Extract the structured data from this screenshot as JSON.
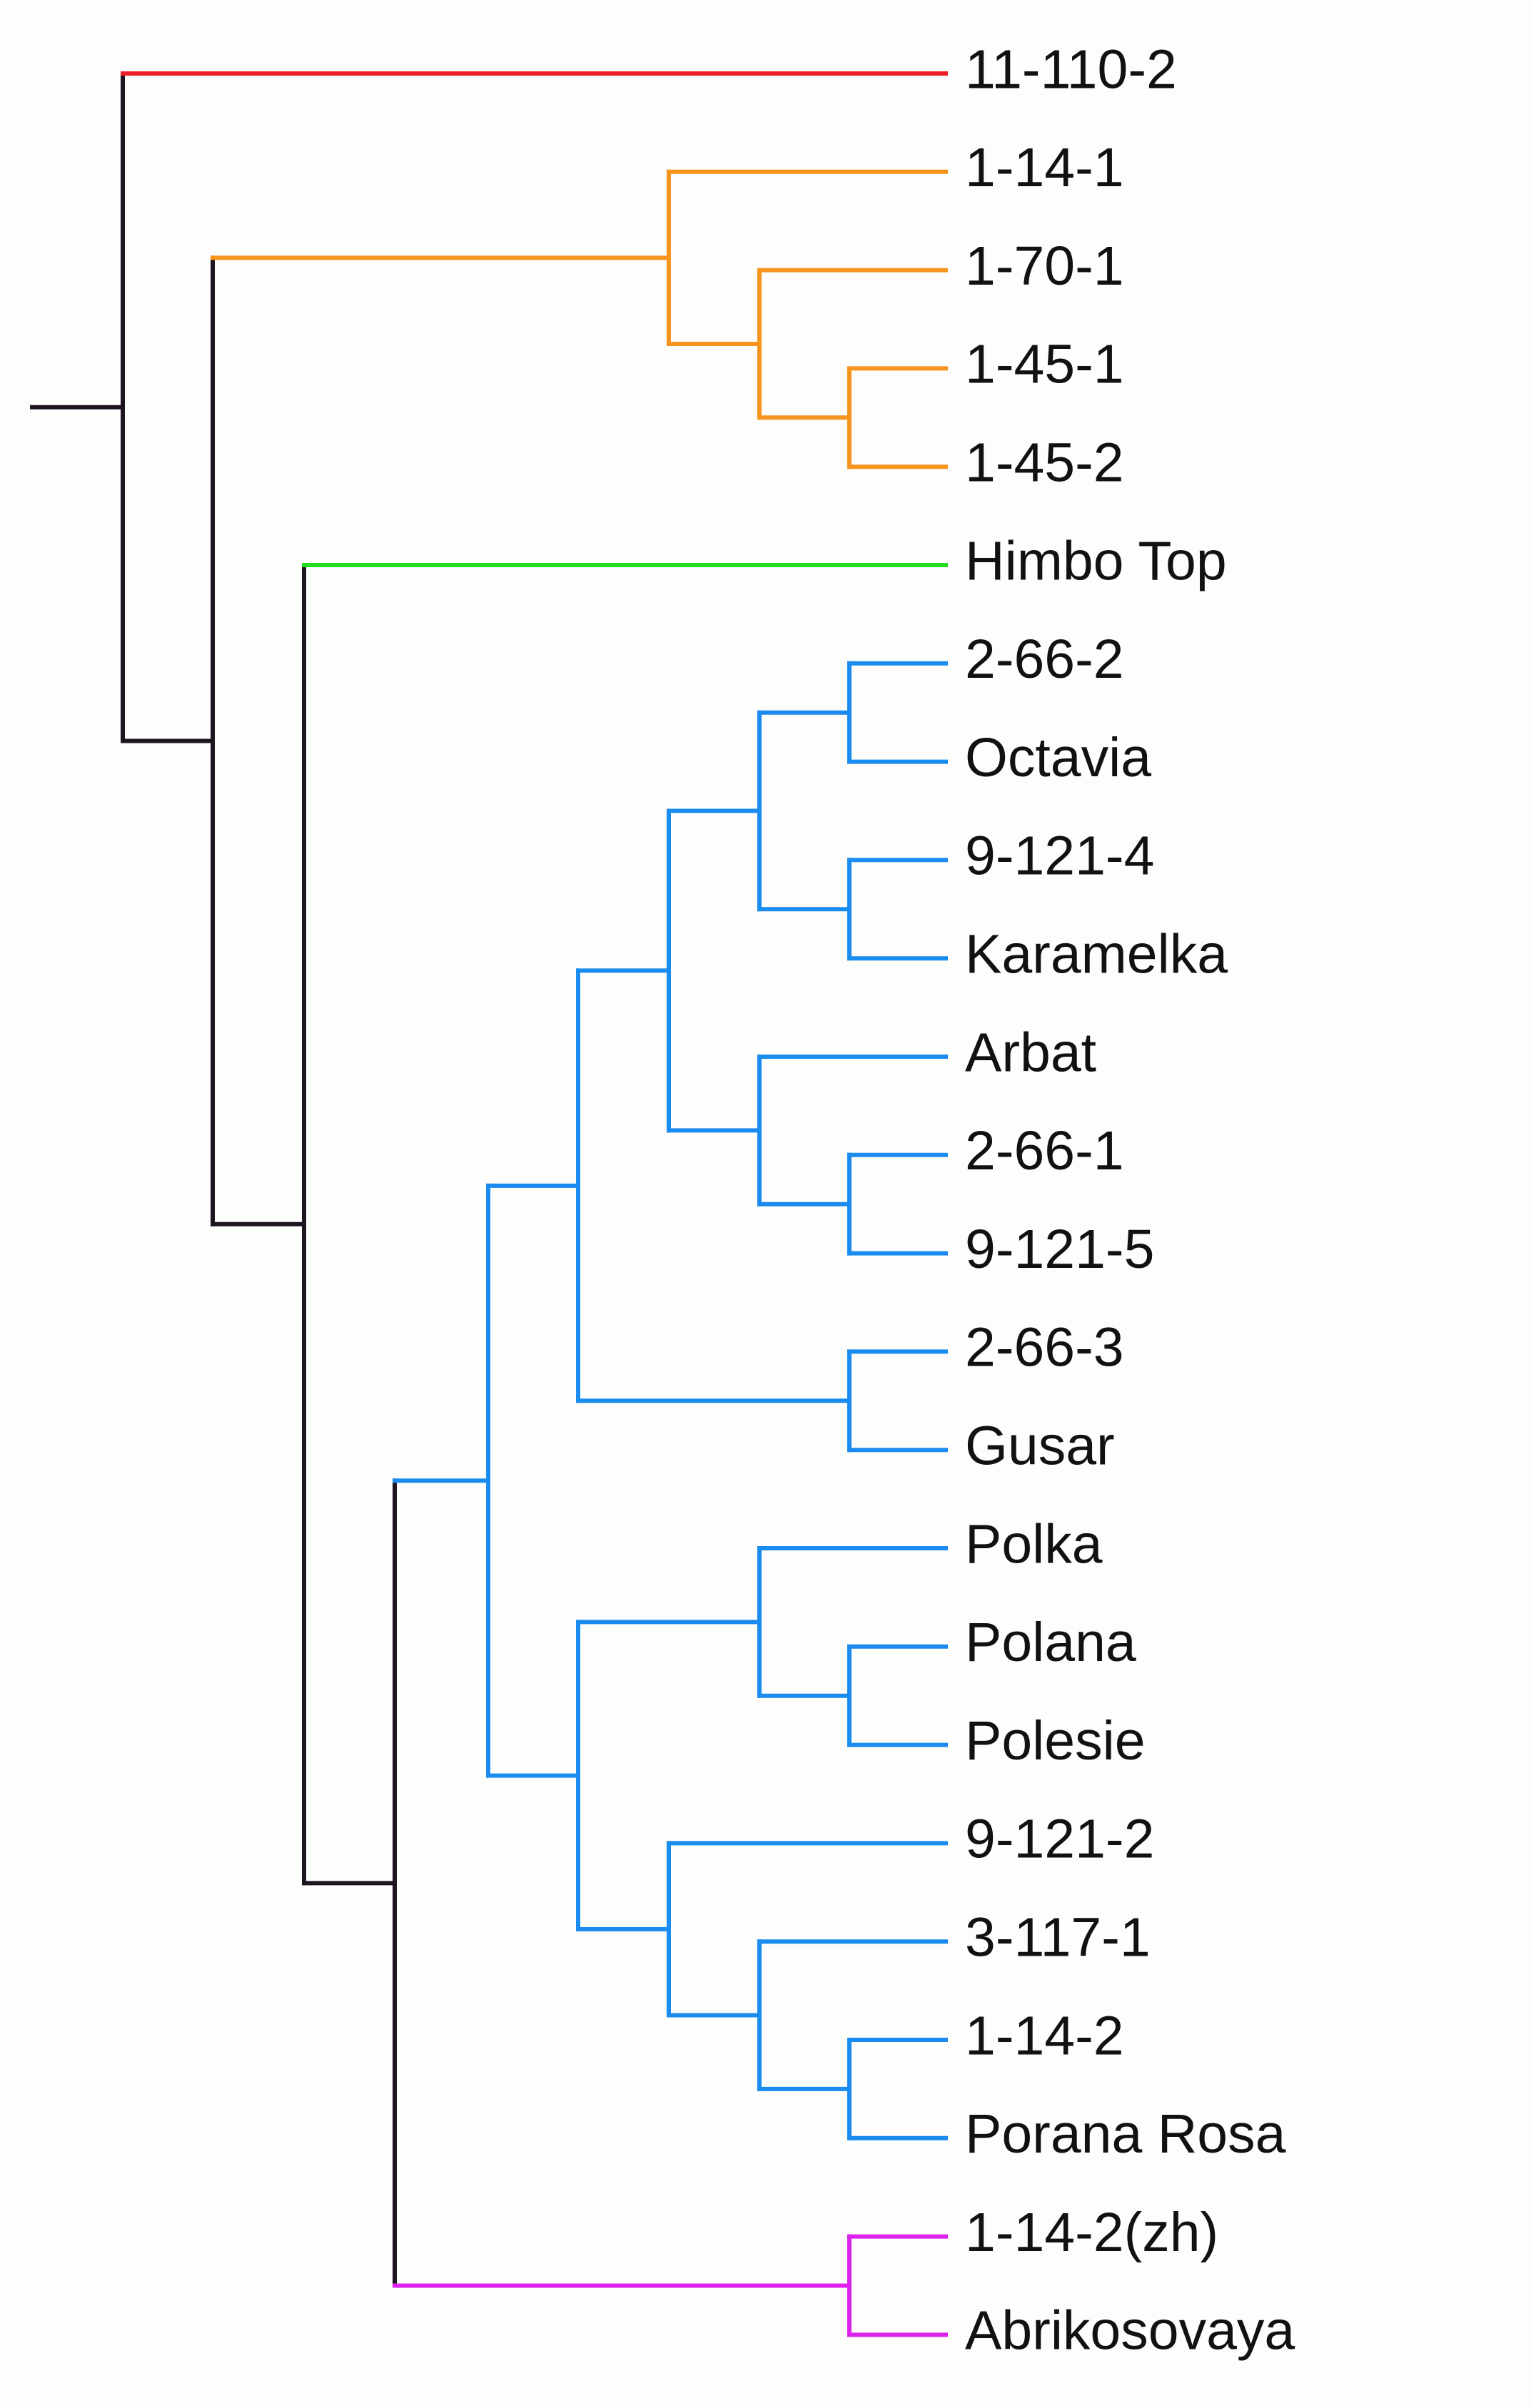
{
  "diagram": {
    "type": "dendrogram",
    "colors": {
      "root": "#1e1420",
      "red": "#ee1c24",
      "orange": "#f7941d",
      "green": "#22dd22",
      "blue": "#1a8cf0",
      "magenta": "#dd22ee"
    },
    "leaves": [
      {
        "id": "L1",
        "label": "11-110-2",
        "color": "red"
      },
      {
        "id": "L2",
        "label": "1-14-1",
        "color": "orange"
      },
      {
        "id": "L3",
        "label": "1-70-1",
        "color": "orange"
      },
      {
        "id": "L4",
        "label": "1-45-1",
        "color": "orange"
      },
      {
        "id": "L5",
        "label": "1-45-2",
        "color": "orange"
      },
      {
        "id": "L6",
        "label": "Himbo Top",
        "color": "green"
      },
      {
        "id": "L7",
        "label": "2-66-2",
        "color": "blue"
      },
      {
        "id": "L8",
        "label": "Octavia",
        "color": "blue"
      },
      {
        "id": "L9",
        "label": "9-121-4",
        "color": "blue"
      },
      {
        "id": "L10",
        "label": "Karamelka",
        "color": "blue"
      },
      {
        "id": "L11",
        "label": "Arbat",
        "color": "blue"
      },
      {
        "id": "L12",
        "label": "2-66-1",
        "color": "blue"
      },
      {
        "id": "L13",
        "label": "9-121-5",
        "color": "blue"
      },
      {
        "id": "L14",
        "label": "2-66-3",
        "color": "blue"
      },
      {
        "id": "L15",
        "label": "Gusar",
        "color": "blue"
      },
      {
        "id": "L16",
        "label": "Polka",
        "color": "blue"
      },
      {
        "id": "L17",
        "label": "Polana",
        "color": "blue"
      },
      {
        "id": "L18",
        "label": "Polesie",
        "color": "blue"
      },
      {
        "id": "L19",
        "label": "9-121-2",
        "color": "blue"
      },
      {
        "id": "L20",
        "label": "3-117-1",
        "color": "blue"
      },
      {
        "id": "L21",
        "label": "1-14-2",
        "color": "blue"
      },
      {
        "id": "L22",
        "label": "Porana Rosa",
        "color": "blue"
      },
      {
        "id": "L23",
        "label": "1-14-2(zh)",
        "color": "magenta"
      },
      {
        "id": "L24",
        "label": "Abrikosovaya",
        "color": "magenta"
      }
    ],
    "clades": [
      {
        "id": "c45",
        "children": [
          "L4",
          "L5"
        ],
        "color": "orange"
      },
      {
        "id": "c70",
        "children": [
          "L3",
          "c45"
        ],
        "color": "orange"
      },
      {
        "id": "cOrange",
        "children": [
          "L2",
          "c70"
        ],
        "color": "orange"
      },
      {
        "id": "cA1",
        "children": [
          "L7",
          "L8"
        ],
        "color": "blue"
      },
      {
        "id": "cA2",
        "children": [
          "L9",
          "L10"
        ],
        "color": "blue"
      },
      {
        "id": "cA",
        "children": [
          "cA1",
          "cA2"
        ],
        "color": "blue"
      },
      {
        "id": "cB1",
        "children": [
          "L12",
          "L13"
        ],
        "color": "blue"
      },
      {
        "id": "cB",
        "children": [
          "L11",
          "cB1"
        ],
        "color": "blue"
      },
      {
        "id": "cAB",
        "children": [
          "cA",
          "cB"
        ],
        "color": "blue"
      },
      {
        "id": "cC",
        "children": [
          "L14",
          "L15"
        ],
        "color": "blue"
      },
      {
        "id": "cABC",
        "children": [
          "cAB",
          "cC"
        ],
        "color": "blue"
      },
      {
        "id": "cD1",
        "children": [
          "L17",
          "L18"
        ],
        "color": "blue"
      },
      {
        "id": "cD",
        "children": [
          "L16",
          "cD1"
        ],
        "color": "blue"
      },
      {
        "id": "cE2",
        "children": [
          "L21",
          "L22"
        ],
        "color": "blue"
      },
      {
        "id": "cE1",
        "children": [
          "L20",
          "cE2"
        ],
        "color": "blue"
      },
      {
        "id": "cE",
        "children": [
          "L19",
          "cE1"
        ],
        "color": "blue"
      },
      {
        "id": "cDE",
        "children": [
          "cD",
          "cE"
        ],
        "color": "blue"
      },
      {
        "id": "cBlue",
        "children": [
          "cABC",
          "cDE"
        ],
        "color": "blue"
      },
      {
        "id": "cMag",
        "children": [
          "L23",
          "L24"
        ],
        "color": "magenta"
      },
      {
        "id": "cBM",
        "children": [
          "cBlue",
          "cMag"
        ],
        "color": "root"
      },
      {
        "id": "cGBM",
        "children": [
          "L6",
          "cBM"
        ],
        "color": "root"
      },
      {
        "id": "cOGBM",
        "children": [
          "cOrange",
          "cGBM"
        ],
        "color": "root"
      },
      {
        "id": "cRoot",
        "children": [
          "L1",
          "cOGBM"
        ],
        "color": "root"
      }
    ]
  }
}
